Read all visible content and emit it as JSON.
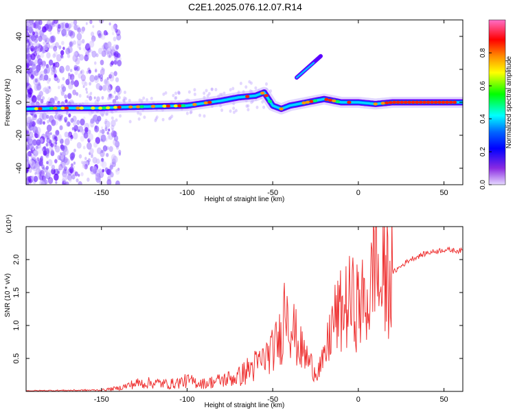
{
  "title": "C2E1.2025.076.12.07.R14",
  "chart_data": [
    {
      "type": "heatmap",
      "xlabel": "Height of straight line (km)",
      "ylabel": "Frequency (Hz)",
      "xlim": [
        -194,
        61
      ],
      "ylim": [
        -50,
        50
      ],
      "x_ticks": [
        -150,
        -100,
        -50,
        0,
        50
      ],
      "y_ticks": [
        -40,
        -20,
        0,
        20,
        40
      ],
      "colorbar": {
        "label": "Normalized spectral amplitude",
        "range": [
          0,
          1
        ],
        "ticks": [
          0.0,
          0.2,
          0.4,
          0.6,
          0.8
        ],
        "colors": [
          "#ff6ec7",
          "#ff0000",
          "#ff8c00",
          "#ffff00",
          "#00ff00",
          "#00ffff",
          "#0066ff",
          "#0000ff",
          "#8a2be2",
          "#e6d9ff"
        ]
      },
      "ridge": {
        "x": [
          -194,
          -170,
          -150,
          -140,
          -120,
          -100,
          -80,
          -70,
          -60,
          -55,
          -50,
          -45,
          -40,
          -30,
          -20,
          -10,
          0,
          10,
          20,
          40,
          61
        ],
        "y": [
          -4,
          -3.5,
          -3.5,
          -3,
          -2.5,
          -2,
          1,
          3,
          4,
          6,
          -2,
          -4,
          -2,
          0,
          2,
          0,
          0,
          -1,
          0,
          0,
          0
        ]
      },
      "branch": {
        "x": [
          -36,
          -22
        ],
        "y": [
          15,
          28
        ]
      }
    },
    {
      "type": "line",
      "xlabel": "Height of straight line (km)",
      "ylabel": "SNR (10 * v/v)",
      "y_multiplier": "(x10⁴)",
      "xlim": [
        -194,
        61
      ],
      "ylim": [
        0,
        2.5
      ],
      "x_ticks": [
        -150,
        -100,
        -50,
        0,
        50
      ],
      "y_ticks": [
        0.5,
        1.0,
        1.5,
        2.0
      ],
      "series_color": "#ee3333",
      "x": [
        -194,
        -150,
        -140,
        -130,
        -120,
        -110,
        -100,
        -90,
        -80,
        -70,
        -60,
        -55,
        -50,
        -45,
        -42,
        -40,
        -35,
        -30,
        -25,
        -20,
        -15,
        -10,
        -5,
        0,
        5,
        8,
        10,
        12,
        15,
        20,
        30,
        40,
        50,
        61
      ],
      "values": [
        0.01,
        0.02,
        0.05,
        0.12,
        0.13,
        0.11,
        0.16,
        0.12,
        0.17,
        0.22,
        0.4,
        0.5,
        0.62,
        0.85,
        1.5,
        1.1,
        0.7,
        0.5,
        0.3,
        0.45,
        1.05,
        1.2,
        1.35,
        1.3,
        1.35,
        1.6,
        2.5,
        1.5,
        1.7,
        1.8,
        2.0,
        2.1,
        2.15,
        2.13
      ]
    }
  ]
}
